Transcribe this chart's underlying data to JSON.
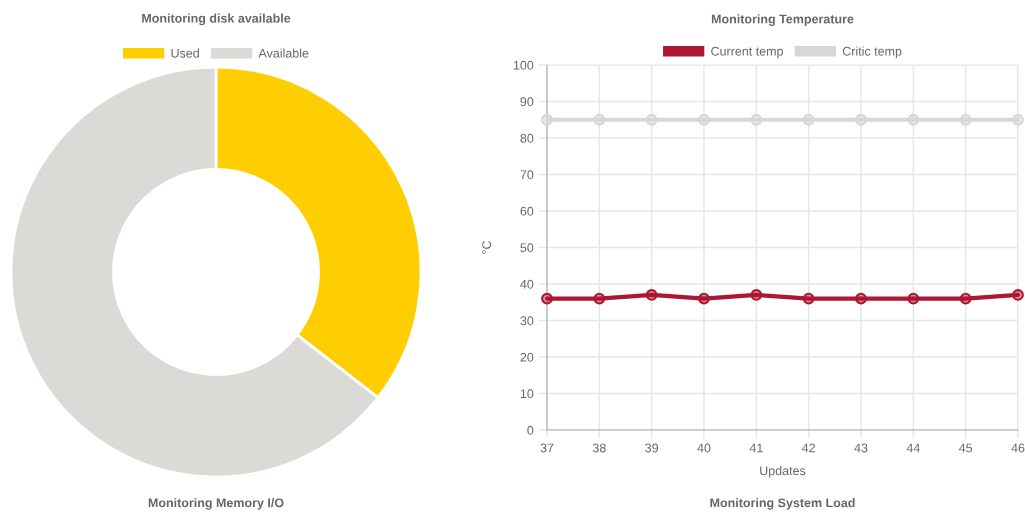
{
  "chart_data": [
    {
      "type": "donut",
      "title": "Monitoring disk available",
      "categories": [
        "Used",
        "Available"
      ],
      "values": [
        35.5,
        64.5
      ],
      "colors": [
        "#ffce00",
        "#dcdad6"
      ],
      "legend": "top"
    },
    {
      "type": "line",
      "title": "Monitoring Temperature",
      "xlabel": "Updates",
      "ylabel": "°C",
      "categories": [
        "37",
        "38",
        "39",
        "40",
        "41",
        "42",
        "43",
        "44",
        "45",
        "46"
      ],
      "series": [
        {
          "name": "Current temp",
          "color": "#ad1731",
          "values": [
            36,
            36,
            37,
            36,
            37,
            36,
            36,
            36,
            36,
            37
          ]
        },
        {
          "name": "Critic temp",
          "color": "#d9d7d3",
          "values": [
            85,
            85,
            85,
            85,
            85,
            85,
            85,
            85,
            85,
            85
          ]
        }
      ],
      "ylim": [
        0,
        100
      ],
      "yticks": [
        0,
        10,
        20,
        30,
        40,
        50,
        60,
        70,
        80,
        90,
        100
      ],
      "grid": true,
      "legend": "top",
      "marker": "circle",
      "line_style": "solid"
    },
    {
      "type": "other",
      "title": "Monitoring Memory I/O"
    },
    {
      "type": "other",
      "title": "Monitoring System Load"
    }
  ]
}
